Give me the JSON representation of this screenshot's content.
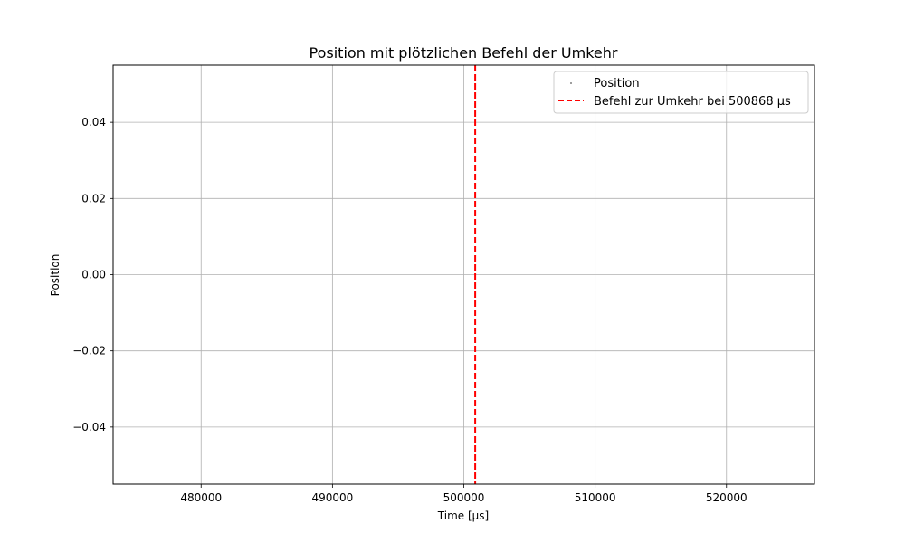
{
  "chart_data": {
    "type": "scatter",
    "title": "Position mit plötzlichen Befehl der Umkehr",
    "xlabel": "Time [µs]",
    "ylabel": "Position",
    "xlim": [
      473300,
      526700
    ],
    "ylim": [
      -0.055,
      0.055
    ],
    "x_ticks": [
      480000,
      490000,
      500000,
      510000,
      520000
    ],
    "y_ticks": [
      -0.04,
      -0.02,
      0.0,
      0.02,
      0.04
    ],
    "x_tick_labels": [
      "480000",
      "490000",
      "500000",
      "510000",
      "520000"
    ],
    "y_tick_labels": [
      "−0.04",
      "−0.02",
      "0.00",
      "0.02",
      "0.04"
    ],
    "grid": true,
    "legend_position": "top-right",
    "series": [
      {
        "name": "Position",
        "kind": "scatter",
        "color": "#808080",
        "points": []
      }
    ],
    "vlines": [
      {
        "name": "Befehl zur Umkehr bei 500868 µs",
        "x": 500868,
        "color": "#ff0000",
        "style": "dashed"
      }
    ]
  }
}
